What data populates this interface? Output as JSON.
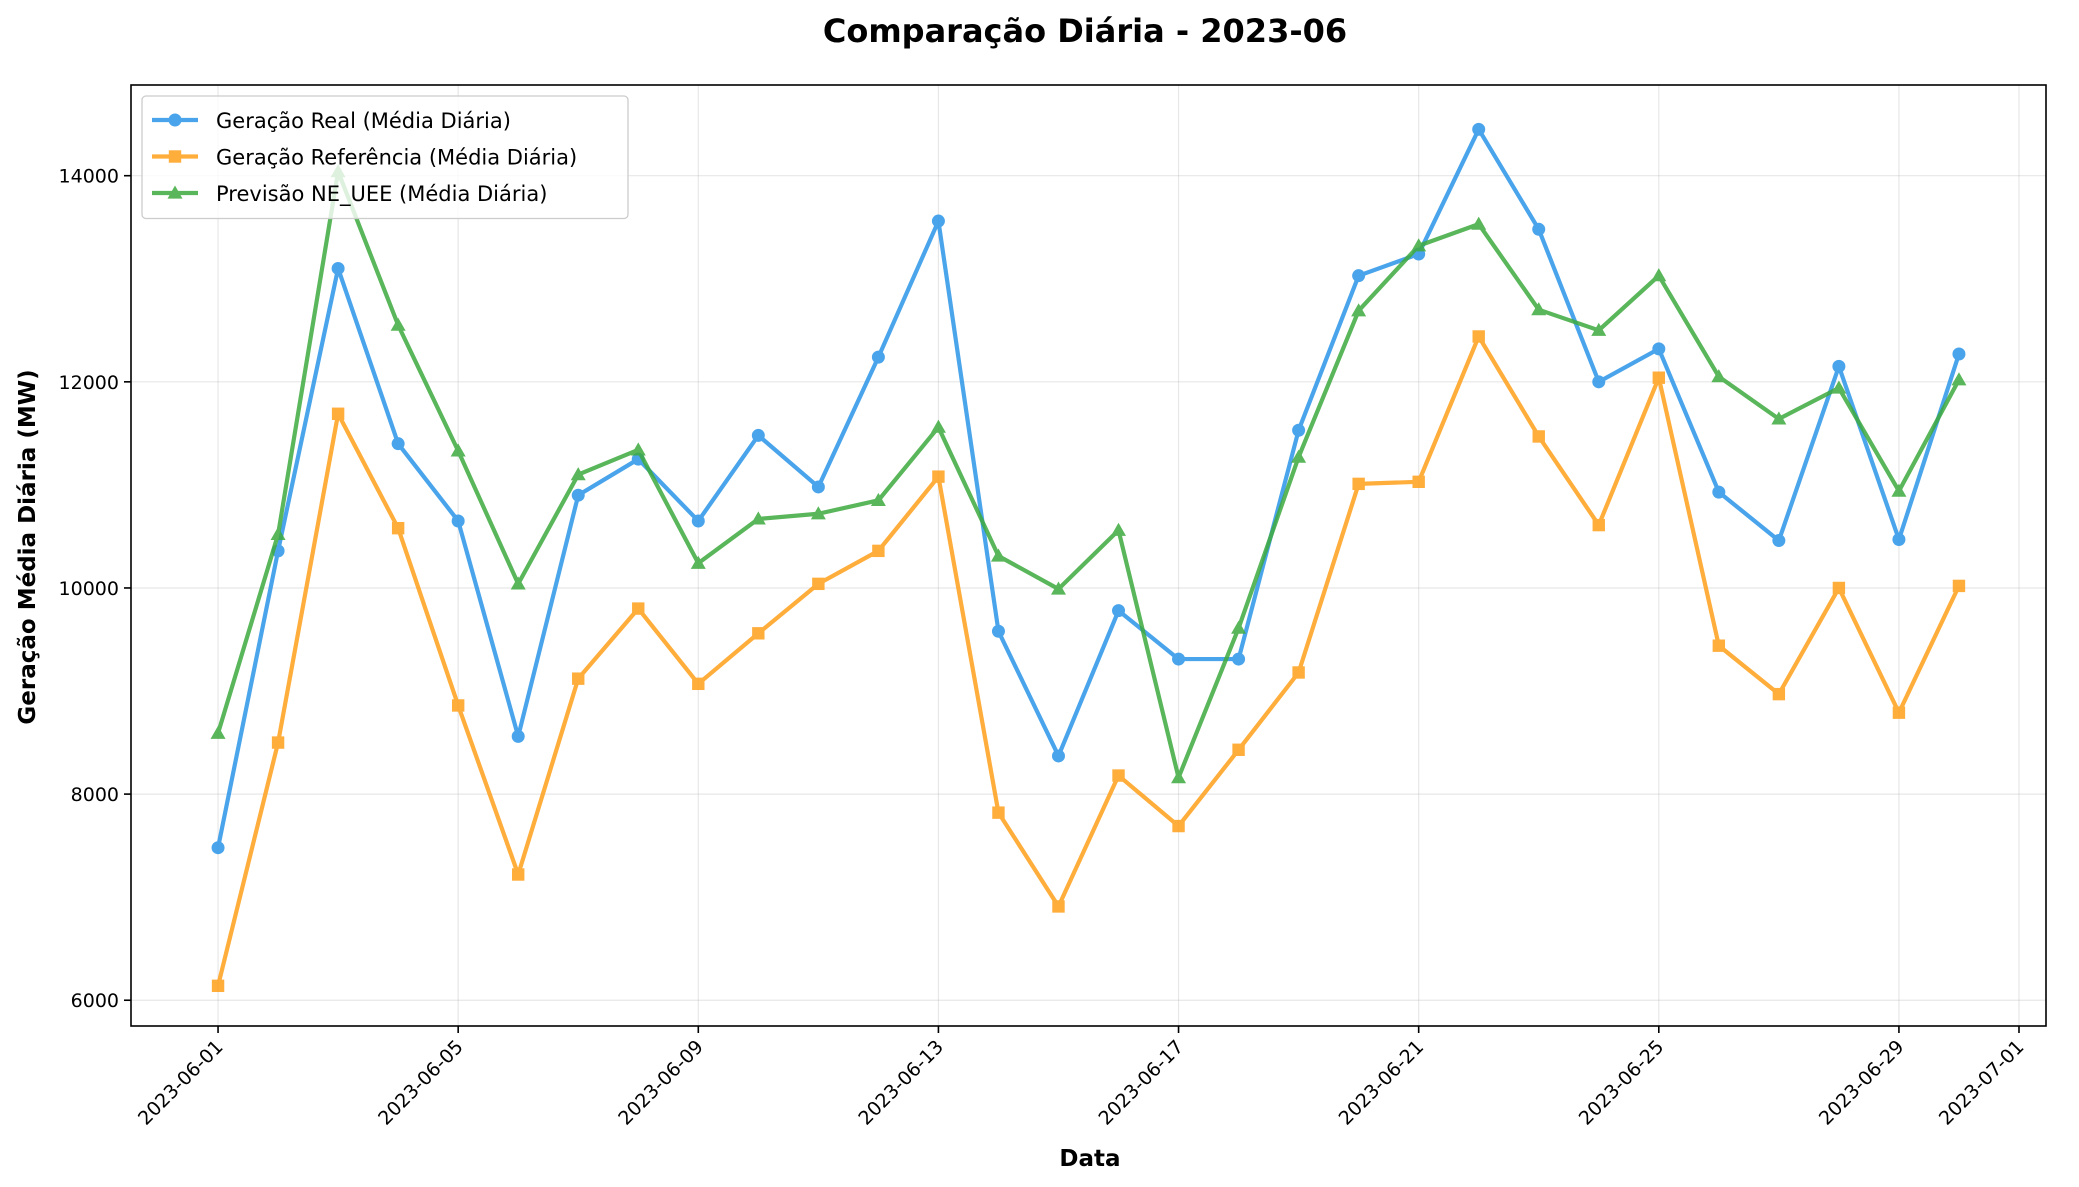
{
  "chart_data": {
    "type": "line",
    "title": "Comparação Diária - 2023-06",
    "xlabel": "Data",
    "ylabel": "Geração Média Diária (MW)",
    "x": [
      "2023-06-01",
      "2023-06-02",
      "2023-06-03",
      "2023-06-04",
      "2023-06-05",
      "2023-06-06",
      "2023-06-07",
      "2023-06-08",
      "2023-06-09",
      "2023-06-10",
      "2023-06-11",
      "2023-06-12",
      "2023-06-13",
      "2023-06-14",
      "2023-06-15",
      "2023-06-16",
      "2023-06-17",
      "2023-06-18",
      "2023-06-19",
      "2023-06-20",
      "2023-06-21",
      "2023-06-22",
      "2023-06-23",
      "2023-06-24",
      "2023-06-25",
      "2023-06-26",
      "2023-06-27",
      "2023-06-28",
      "2023-06-29",
      "2023-06-30"
    ],
    "x_ticks": [
      "2023-06-01",
      "2023-06-05",
      "2023-06-09",
      "2023-06-13",
      "2023-06-17",
      "2023-06-21",
      "2023-06-25",
      "2023-06-29",
      "2023-07-01"
    ],
    "xlim": [
      "2023-05-30.55",
      "2023-07-01.45"
    ],
    "y_ticks": [
      6000,
      8000,
      10000,
      12000,
      14000
    ],
    "ylim": [
      5750,
      14880
    ],
    "grid": true,
    "legend_position": "top-left",
    "series": [
      {
        "name": "Geração Real (Média Diária)",
        "color": "#2b95e8",
        "marker": "circle",
        "values": [
          7480,
          10360,
          13100,
          11400,
          10650,
          8560,
          10900,
          11250,
          10650,
          11480,
          10980,
          12240,
          13560,
          9580,
          8370,
          9780,
          9310,
          9310,
          11530,
          13030,
          13240,
          14450,
          13480,
          12000,
          12320,
          10930,
          10460,
          12150,
          10470,
          12270
        ]
      },
      {
        "name": "Geração Referência (Média Diária)",
        "color": "#ff9f1a",
        "marker": "square",
        "values": [
          6140,
          8500,
          11690,
          10580,
          8860,
          7220,
          9120,
          9800,
          9070,
          9560,
          10040,
          10360,
          11080,
          7820,
          6910,
          8180,
          7690,
          8430,
          9180,
          11010,
          11030,
          12440,
          11470,
          10610,
          12040,
          9440,
          8970,
          10000,
          8790,
          10020
        ]
      },
      {
        "name": "Previsão NE_UEE (Média Diária)",
        "color": "#3eaa3e",
        "marker": "triangle",
        "values": [
          8590,
          10520,
          14040,
          12550,
          11330,
          10040,
          11100,
          11340,
          10240,
          10670,
          10720,
          10850,
          11560,
          10310,
          9990,
          10560,
          8160,
          9610,
          11270,
          12690,
          13320,
          13530,
          12700,
          12500,
          13030,
          12050,
          11640,
          11940,
          10940,
          12020
        ]
      }
    ]
  }
}
